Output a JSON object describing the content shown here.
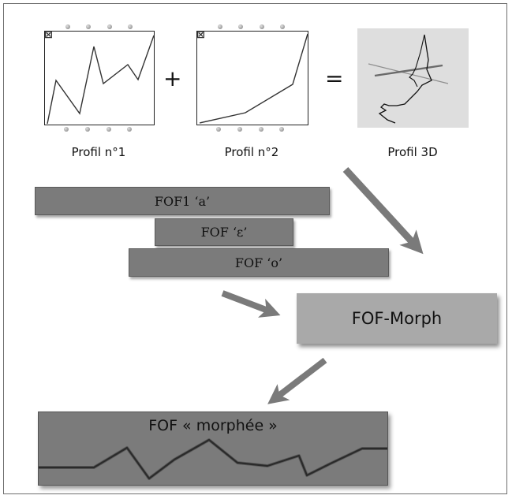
{
  "profiles": {
    "profile1_caption": "Profil n°1",
    "profile2_caption": "Profil n°2",
    "profile3d_caption": "Profil 3D",
    "plus_sign": "+",
    "equals_sign": "="
  },
  "fof_bars": [
    {
      "label": "FOF1 ‘a’"
    },
    {
      "label": "FOF ‘ε’"
    },
    {
      "label": "FOF ‘o’"
    }
  ],
  "morph_box": {
    "label": "FOF-Morph"
  },
  "result": {
    "title": "FOF « morphée »"
  },
  "colors": {
    "bar_gray": "#7b7b7b",
    "morph_box_gray": "#a9a9a9",
    "arrow_gray": "#7a7a7a",
    "profile3d_bg": "#dedede"
  }
}
